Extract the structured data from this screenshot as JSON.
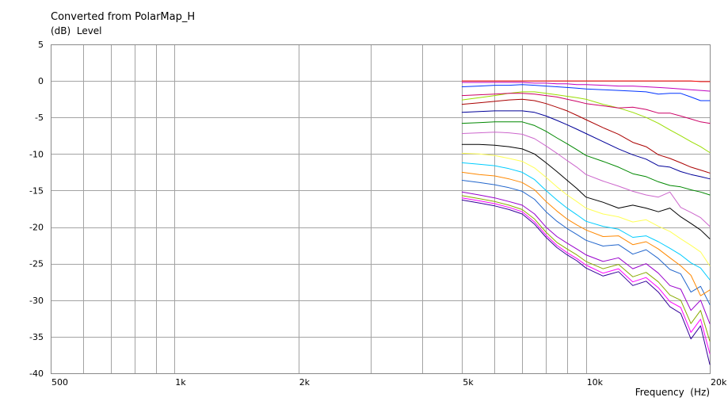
{
  "chart_data": {
    "type": "line",
    "title": "Converted from PolarMap_H",
    "ylabel": "(dB)  Level",
    "xlabel": "Frequency  (Hz)",
    "xscale": "log",
    "xlim": [
      500,
      20000
    ],
    "ylim": [
      -40,
      5
    ],
    "grid": true,
    "xticks": [
      {
        "value": 500,
        "label": "500"
      },
      {
        "value": 1000,
        "label": "1k"
      },
      {
        "value": 2000,
        "label": "2k"
      },
      {
        "value": 5000,
        "label": "5k"
      },
      {
        "value": 10000,
        "label": "10k"
      },
      {
        "value": 20000,
        "label": "20k"
      }
    ],
    "yticks": [
      {
        "value": 5,
        "label": "5"
      },
      {
        "value": 0,
        "label": "0"
      },
      {
        "value": -5,
        "label": "-5"
      },
      {
        "value": -10,
        "label": "-10"
      },
      {
        "value": -15,
        "label": "-15"
      },
      {
        "value": -20,
        "label": "-20"
      },
      {
        "value": -25,
        "label": "-25"
      },
      {
        "value": -30,
        "label": "-30"
      },
      {
        "value": -35,
        "label": "-35"
      },
      {
        "value": -40,
        "label": "-40"
      }
    ],
    "x_gridlines": [
      600,
      700,
      800,
      900,
      1000,
      2000,
      3000,
      4000,
      5000,
      6000,
      7000,
      8000,
      9000,
      10000
    ],
    "x": [
      5000,
      5500,
      6000,
      6500,
      7000,
      7500,
      8000,
      8500,
      9000,
      9500,
      10000,
      11000,
      12000,
      13000,
      14000,
      15000,
      16000,
      17000,
      18000,
      19000,
      20000
    ],
    "series": [
      {
        "color": "#ff0000",
        "values": [
          0,
          0,
          0,
          0,
          0,
          0,
          0,
          0,
          0,
          0,
          0,
          0,
          0,
          0,
          0,
          0,
          0,
          0,
          0,
          -0.1,
          -0.1
        ]
      },
      {
        "color": "#c000c0",
        "values": [
          -0.2,
          -0.2,
          -0.2,
          -0.2,
          -0.2,
          -0.3,
          -0.3,
          -0.4,
          -0.4,
          -0.5,
          -0.5,
          -0.6,
          -0.7,
          -0.7,
          -0.8,
          -0.9,
          -1.0,
          -1.1,
          -1.2,
          -1.3,
          -1.4
        ]
      },
      {
        "color": "#0033ff",
        "values": [
          -0.8,
          -0.7,
          -0.6,
          -0.6,
          -0.5,
          -0.6,
          -0.7,
          -0.8,
          -0.9,
          -1.0,
          -1.1,
          -1.2,
          -1.3,
          -1.4,
          -1.5,
          -1.8,
          -1.7,
          -1.7,
          -2.2,
          -2.7,
          -2.7
        ]
      },
      {
        "color": "#cc0066",
        "values": [
          -2.0,
          -1.9,
          -1.8,
          -1.7,
          -1.7,
          -1.8,
          -2.0,
          -2.2,
          -2.5,
          -2.8,
          -3.1,
          -3.4,
          -3.7,
          -3.6,
          -3.9,
          -4.4,
          -4.4,
          -4.8,
          -5.2,
          -5.6,
          -5.8
        ]
      },
      {
        "color": "#99dd00",
        "values": [
          -2.6,
          -2.3,
          -2.0,
          -1.7,
          -1.5,
          -1.5,
          -1.7,
          -1.9,
          -2.1,
          -2.3,
          -2.5,
          -3.2,
          -3.7,
          -4.3,
          -5.0,
          -5.8,
          -6.7,
          -7.5,
          -8.3,
          -9.0,
          -9.8
        ]
      },
      {
        "color": "#aa0000",
        "values": [
          -3.2,
          -3.0,
          -2.8,
          -2.6,
          -2.5,
          -2.7,
          -3.1,
          -3.6,
          -4.1,
          -4.7,
          -5.3,
          -6.4,
          -7.3,
          -8.4,
          -9.0,
          -10.1,
          -10.6,
          -11.2,
          -11.8,
          -12.2,
          -12.6
        ]
      },
      {
        "color": "#000099",
        "values": [
          -4.3,
          -4.2,
          -4.1,
          -4.1,
          -4.1,
          -4.3,
          -4.8,
          -5.4,
          -6.0,
          -6.6,
          -7.2,
          -8.3,
          -9.3,
          -10.1,
          -10.7,
          -11.6,
          -11.8,
          -12.4,
          -12.8,
          -13.1,
          -13.4
        ]
      },
      {
        "color": "#008800",
        "values": [
          -5.8,
          -5.7,
          -5.6,
          -5.6,
          -5.6,
          -6.1,
          -6.9,
          -7.8,
          -8.6,
          -9.4,
          -10.2,
          -11.0,
          -11.8,
          -12.7,
          -13.1,
          -13.8,
          -14.3,
          -14.5,
          -14.9,
          -15.2,
          -15.6
        ]
      },
      {
        "color": "#cc66cc",
        "values": [
          -7.2,
          -7.1,
          -7.0,
          -7.1,
          -7.3,
          -7.9,
          -8.9,
          -9.9,
          -10.9,
          -11.8,
          -12.8,
          -13.7,
          -14.4,
          -15.1,
          -15.6,
          -15.9,
          -15.2,
          -17.3,
          -18.0,
          -18.7,
          -19.9
        ]
      },
      {
        "color": "#000000",
        "values": [
          -8.7,
          -8.7,
          -8.8,
          -9.0,
          -9.3,
          -10.0,
          -11.2,
          -12.4,
          -13.6,
          -14.7,
          -15.9,
          -16.6,
          -17.4,
          -17.0,
          -17.4,
          -17.9,
          -17.4,
          -18.6,
          -19.5,
          -20.4,
          -21.6
        ]
      },
      {
        "color": "#ffff55",
        "values": [
          -9.9,
          -10.0,
          -10.2,
          -10.6,
          -11.0,
          -11.9,
          -13.2,
          -14.5,
          -15.6,
          -16.5,
          -17.4,
          -18.2,
          -18.6,
          -19.3,
          -19.0,
          -19.9,
          -20.6,
          -21.6,
          -22.5,
          -23.4,
          -25.3
        ]
      },
      {
        "color": "#00ccff",
        "values": [
          -11.2,
          -11.4,
          -11.6,
          -12.0,
          -12.5,
          -13.5,
          -15.0,
          -16.3,
          -17.4,
          -18.3,
          -19.2,
          -19.9,
          -20.3,
          -21.4,
          -21.2,
          -22.0,
          -22.9,
          -23.8,
          -24.9,
          -25.6,
          -27.2
        ]
      },
      {
        "color": "#ff8800",
        "values": [
          -12.5,
          -12.8,
          -13.0,
          -13.4,
          -13.9,
          -14.9,
          -16.5,
          -17.8,
          -18.9,
          -19.7,
          -20.4,
          -21.3,
          -21.2,
          -22.4,
          -22.0,
          -23.0,
          -24.2,
          -25.3,
          -26.6,
          -29.4,
          -28.6
        ]
      },
      {
        "color": "#2266cc",
        "values": [
          -13.6,
          -13.9,
          -14.2,
          -14.6,
          -15.1,
          -16.2,
          -17.9,
          -19.2,
          -20.2,
          -21.0,
          -21.8,
          -22.6,
          -22.4,
          -23.7,
          -23.1,
          -24.3,
          -25.8,
          -26.4,
          -28.9,
          -28.1,
          -30.6
        ]
      },
      {
        "color": "#9900cc",
        "values": [
          -15.2,
          -15.6,
          -16.0,
          -16.5,
          -17.0,
          -18.2,
          -20.0,
          -21.3,
          -22.2,
          -23.0,
          -23.8,
          -24.7,
          -24.2,
          -25.7,
          -25.0,
          -26.3,
          -28.0,
          -28.5,
          -31.4,
          -30.0,
          -33.2
        ]
      },
      {
        "color": "#88aa00",
        "values": [
          -15.7,
          -16.1,
          -16.5,
          -17.0,
          -17.6,
          -18.9,
          -20.7,
          -22.1,
          -23.0,
          -23.8,
          -24.7,
          -25.7,
          -25.1,
          -26.8,
          -26.2,
          -27.5,
          -29.3,
          -30.0,
          -33.2,
          -31.4,
          -35.6
        ]
      },
      {
        "color": "#ff00ff",
        "values": [
          -16.0,
          -16.4,
          -16.8,
          -17.3,
          -17.9,
          -19.3,
          -21.1,
          -22.5,
          -23.5,
          -24.3,
          -25.2,
          -26.3,
          -25.7,
          -27.5,
          -26.9,
          -28.3,
          -30.2,
          -31.0,
          -34.4,
          -32.6,
          -37.3
        ]
      },
      {
        "color": "#330099",
        "values": [
          -16.3,
          -16.7,
          -17.1,
          -17.6,
          -18.2,
          -19.6,
          -21.4,
          -22.8,
          -23.8,
          -24.6,
          -25.6,
          -26.7,
          -26.1,
          -28.0,
          -27.4,
          -28.9,
          -30.9,
          -31.8,
          -35.3,
          -33.5,
          -38.8
        ]
      }
    ]
  }
}
